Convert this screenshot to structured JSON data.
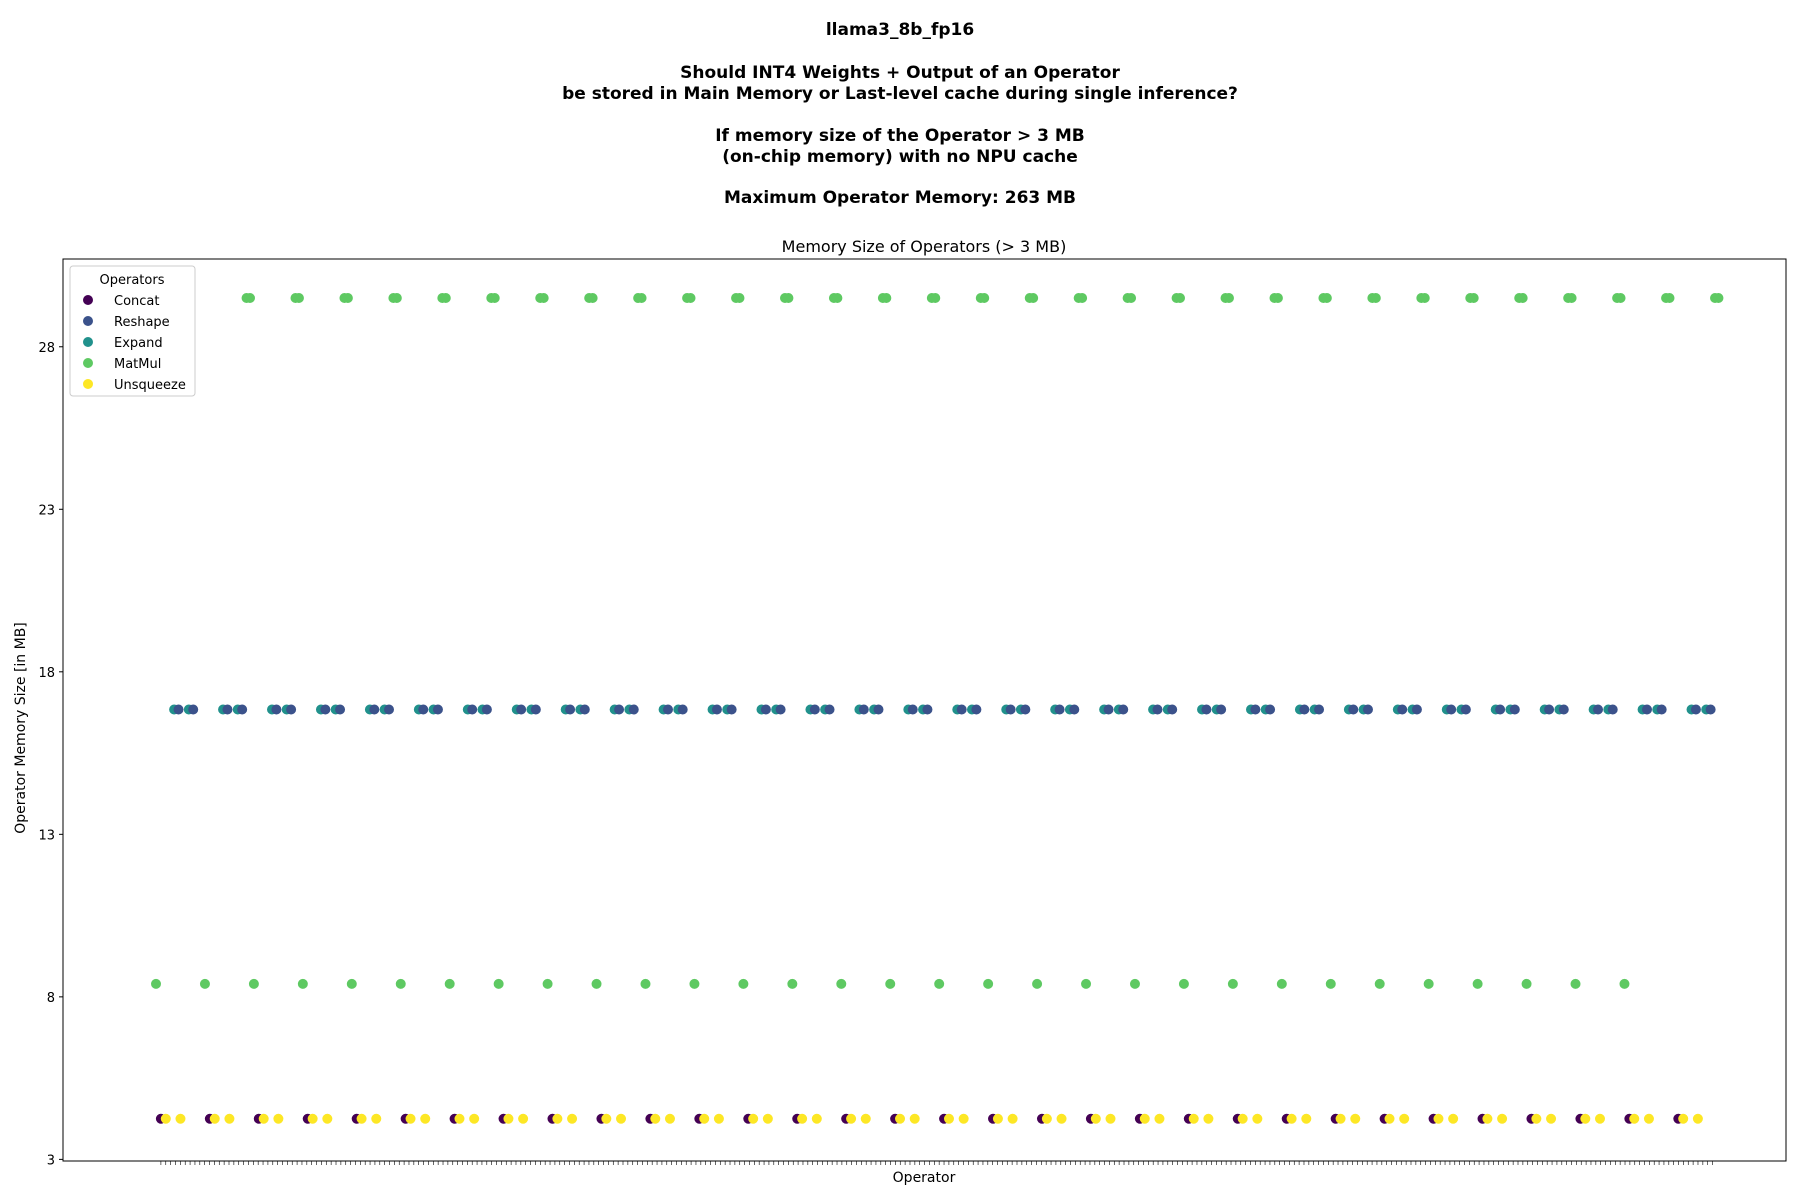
{
  "figure": {
    "title_lines": [
      "llama3_8b_fp16",
      "",
      "Should INT4 Weights + Output of an Operator",
      "be stored in Main Memory or Last-level cache during single inference?",
      "",
      "If memory size of the Operator > 3 MB",
      "(on-chip memory) with no NPU cache",
      "",
      "Maximum Operator Memory: 263 MB"
    ]
  },
  "chart_data": {
    "type": "scatter",
    "title": "Memory Size of Operators (> 3 MB)",
    "xlabel": "Operator",
    "ylabel": "Operator Memory Size [in MB]",
    "ylim": [
      2.95,
      30.7
    ],
    "yticks": [
      3,
      8,
      13,
      18,
      23,
      28
    ],
    "xlim": [
      -2,
      33.2
    ],
    "x_ticks_count": 320,
    "x_tick_labels_visible": false,
    "legend": {
      "title": "Operators",
      "position": "upper left"
    },
    "block_count": 32,
    "block_spacing_index": 1,
    "series": [
      {
        "name": "Concat",
        "color": "#440154",
        "y": 4.25,
        "offsets": [
          0.0
        ]
      },
      {
        "name": "Reshape",
        "color": "#3b528b",
        "y": 16.84,
        "offsets": [
          0.36,
          0.66
        ]
      },
      {
        "name": "Expand",
        "color": "#21918c",
        "y": 16.84,
        "offsets": [
          0.27,
          0.57
        ]
      },
      {
        "name": "MatMul",
        "color": "#5ec962",
        "y_values": [
          8.4,
          29.5
        ],
        "offsets_low": [
          -0.1
        ],
        "offsets_high": [
          1.75,
          1.82
        ]
      },
      {
        "name": "Unsqueeze",
        "color": "#fde725",
        "y": 4.25,
        "offsets": [
          0.1,
          0.4
        ]
      }
    ]
  }
}
